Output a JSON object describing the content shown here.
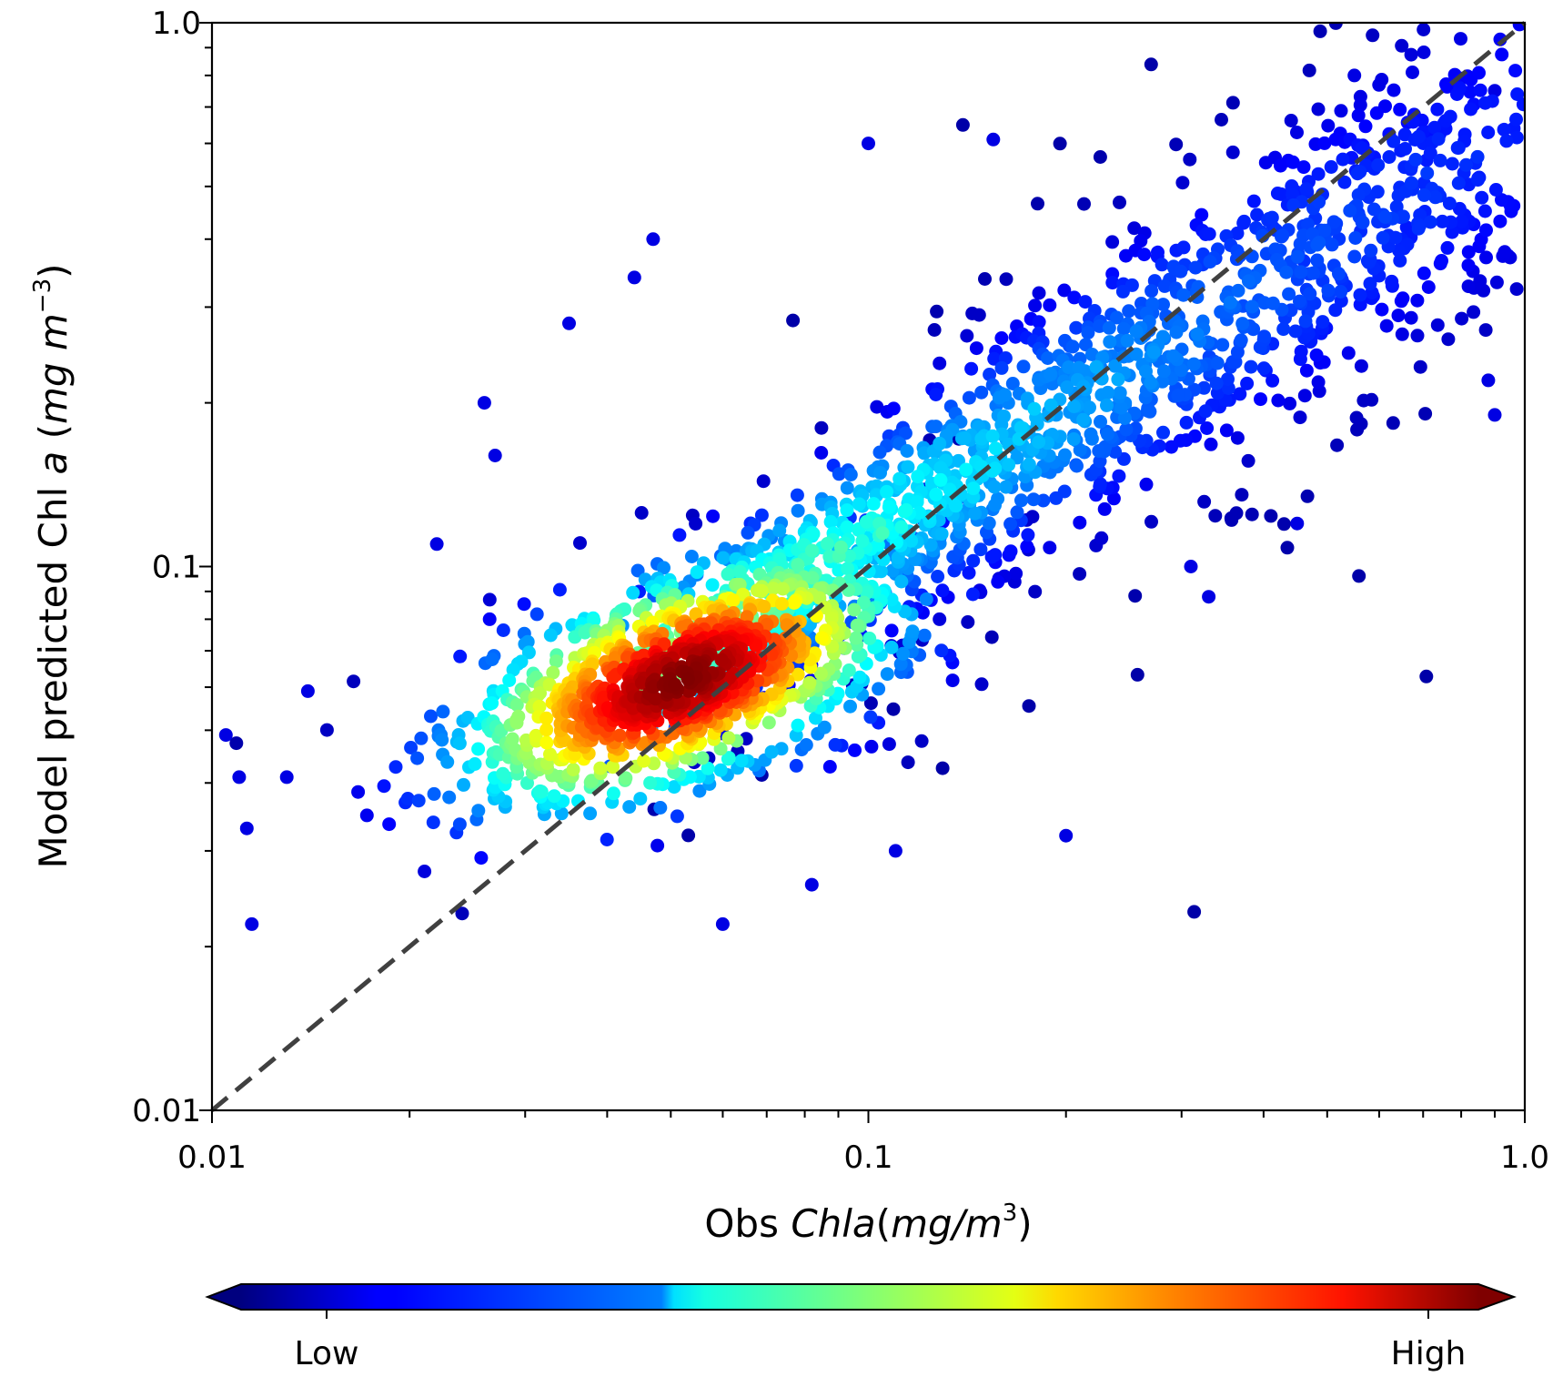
{
  "chart_data": {
    "type": "scatter",
    "title": "",
    "x_scale": "log",
    "y_scale": "log",
    "xlim": [
      0.01,
      1.0
    ],
    "ylim": [
      0.01,
      1.0
    ],
    "xlabel": {
      "prefix": "Obs ",
      "italic": "Chla",
      "unit_open": "(",
      "unit_italic": "mg/m",
      "unit_sup": "3",
      "unit_close": ")"
    },
    "ylabel": {
      "prefix": "Model predicted Chl ",
      "italic_a": "a",
      "open": " (",
      "unit_italic": "mg m",
      "unit_sup": "−3",
      "close": ")"
    },
    "x_ticks": [
      {
        "value": 0.01,
        "label": "0.01"
      },
      {
        "value": 0.1,
        "label": "0.1"
      },
      {
        "value": 1.0,
        "label": "1.0"
      }
    ],
    "y_ticks": [
      {
        "value": 0.01,
        "label": "0.01"
      },
      {
        "value": 0.1,
        "label": "0.1"
      },
      {
        "value": 1.0,
        "label": "1.0"
      }
    ],
    "reference_line": {
      "type": "1:1",
      "style": "dashed",
      "color": "#404040"
    },
    "density_core": {
      "x": 0.052,
      "y": 0.062
    },
    "n_points_approx": 2600,
    "sample_points": [
      {
        "x": 0.0105,
        "y": 0.049
      },
      {
        "x": 0.011,
        "y": 0.041
      },
      {
        "x": 0.0113,
        "y": 0.033
      },
      {
        "x": 0.0115,
        "y": 0.022
      },
      {
        "x": 0.013,
        "y": 0.041
      },
      {
        "x": 0.014,
        "y": 0.059
      },
      {
        "x": 0.022,
        "y": 0.11
      },
      {
        "x": 0.026,
        "y": 0.2
      },
      {
        "x": 0.027,
        "y": 0.16
      },
      {
        "x": 0.035,
        "y": 0.28
      },
      {
        "x": 0.044,
        "y": 0.34
      },
      {
        "x": 0.047,
        "y": 0.4
      },
      {
        "x": 0.1,
        "y": 0.6
      },
      {
        "x": 0.155,
        "y": 0.61
      },
      {
        "x": 0.06,
        "y": 0.022
      },
      {
        "x": 0.082,
        "y": 0.026
      },
      {
        "x": 0.11,
        "y": 0.03
      },
      {
        "x": 0.2,
        "y": 0.032
      },
      {
        "x": 0.31,
        "y": 0.1
      },
      {
        "x": 0.33,
        "y": 0.088
      },
      {
        "x": 0.45,
        "y": 0.12
      },
      {
        "x": 0.55,
        "y": 0.8
      },
      {
        "x": 0.8,
        "y": 0.79
      },
      {
        "x": 0.9,
        "y": 0.75
      },
      {
        "x": 0.95,
        "y": 0.37
      },
      {
        "x": 0.88,
        "y": 0.22
      },
      {
        "x": 0.9,
        "y": 0.19
      }
    ],
    "colorbar": {
      "colormap": "jet",
      "orientation": "horizontal",
      "extend": "both",
      "low_label": "Low",
      "high_label": "High"
    }
  }
}
